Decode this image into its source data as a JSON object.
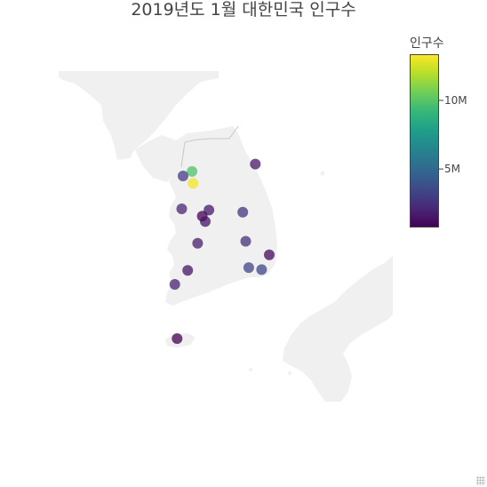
{
  "chart_data": {
    "type": "scatter",
    "title": "2019년도 1월 대한민국 인구수",
    "colorbar": {
      "title": "인구수",
      "colorscale": "viridis",
      "tick_values": [
        5000000,
        10000000
      ],
      "tick_labels": [
        "5M",
        "10M"
      ],
      "range": [
        800000,
        13300000
      ]
    },
    "geo": {
      "lat_range": [
        31.0,
        42.0
      ],
      "lon_range": [
        123.0,
        133.0
      ],
      "land_color": "#f0f0f0",
      "border_color": "#c8c8c8",
      "background": "#ffffff"
    },
    "points": [
      {
        "lat": 37.57,
        "lon": 126.98,
        "value": 9770000
      },
      {
        "lat": 37.46,
        "lon": 126.71,
        "value": 2950000
      },
      {
        "lat": 37.28,
        "lon": 127.01,
        "value": 13100000
      },
      {
        "lat": 37.75,
        "lon": 128.89,
        "value": 1540000
      },
      {
        "lat": 36.63,
        "lon": 127.49,
        "value": 1600000
      },
      {
        "lat": 36.48,
        "lon": 127.29,
        "value": 320000
      },
      {
        "lat": 36.35,
        "lon": 127.38,
        "value": 1480000
      },
      {
        "lat": 36.66,
        "lon": 126.67,
        "value": 2120000
      },
      {
        "lat": 36.58,
        "lon": 128.51,
        "value": 2670000
      },
      {
        "lat": 35.87,
        "lon": 128.6,
        "value": 2460000
      },
      {
        "lat": 35.82,
        "lon": 127.15,
        "value": 1830000
      },
      {
        "lat": 35.54,
        "lon": 129.31,
        "value": 1150000
      },
      {
        "lat": 35.23,
        "lon": 128.69,
        "value": 3370000
      },
      {
        "lat": 35.18,
        "lon": 129.08,
        "value": 3440000
      },
      {
        "lat": 35.16,
        "lon": 126.85,
        "value": 1460000
      },
      {
        "lat": 34.82,
        "lon": 126.46,
        "value": 1880000
      },
      {
        "lat": 33.5,
        "lon": 126.53,
        "value": 670000
      }
    ]
  }
}
